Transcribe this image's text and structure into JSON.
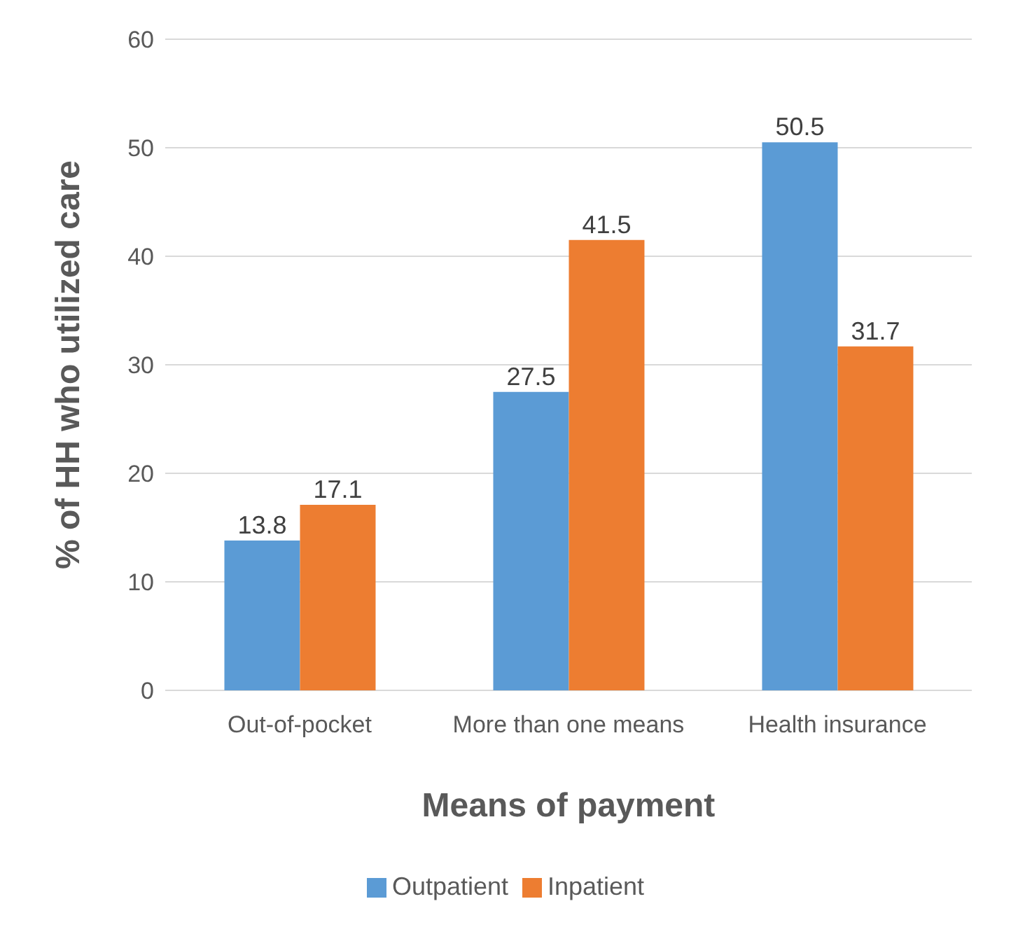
{
  "chart_data": {
    "type": "bar",
    "xlabel": "Means of payment",
    "ylabel": "% of HH who utilized care",
    "categories": [
      "Out-of-pocket",
      "More than one means",
      "Health insurance"
    ],
    "series": [
      {
        "name": "Outpatient",
        "color": "#5b9bd5",
        "values": [
          13.8,
          27.5,
          50.5
        ]
      },
      {
        "name": "Inpatient",
        "color": "#ed7d31",
        "values": [
          17.1,
          41.5,
          31.7
        ]
      }
    ],
    "ylim": [
      0,
      60
    ],
    "yticks": [
      0,
      10,
      20,
      30,
      40,
      50,
      60
    ],
    "grid": "y",
    "legend": "bottom",
    "data_labels": true
  }
}
